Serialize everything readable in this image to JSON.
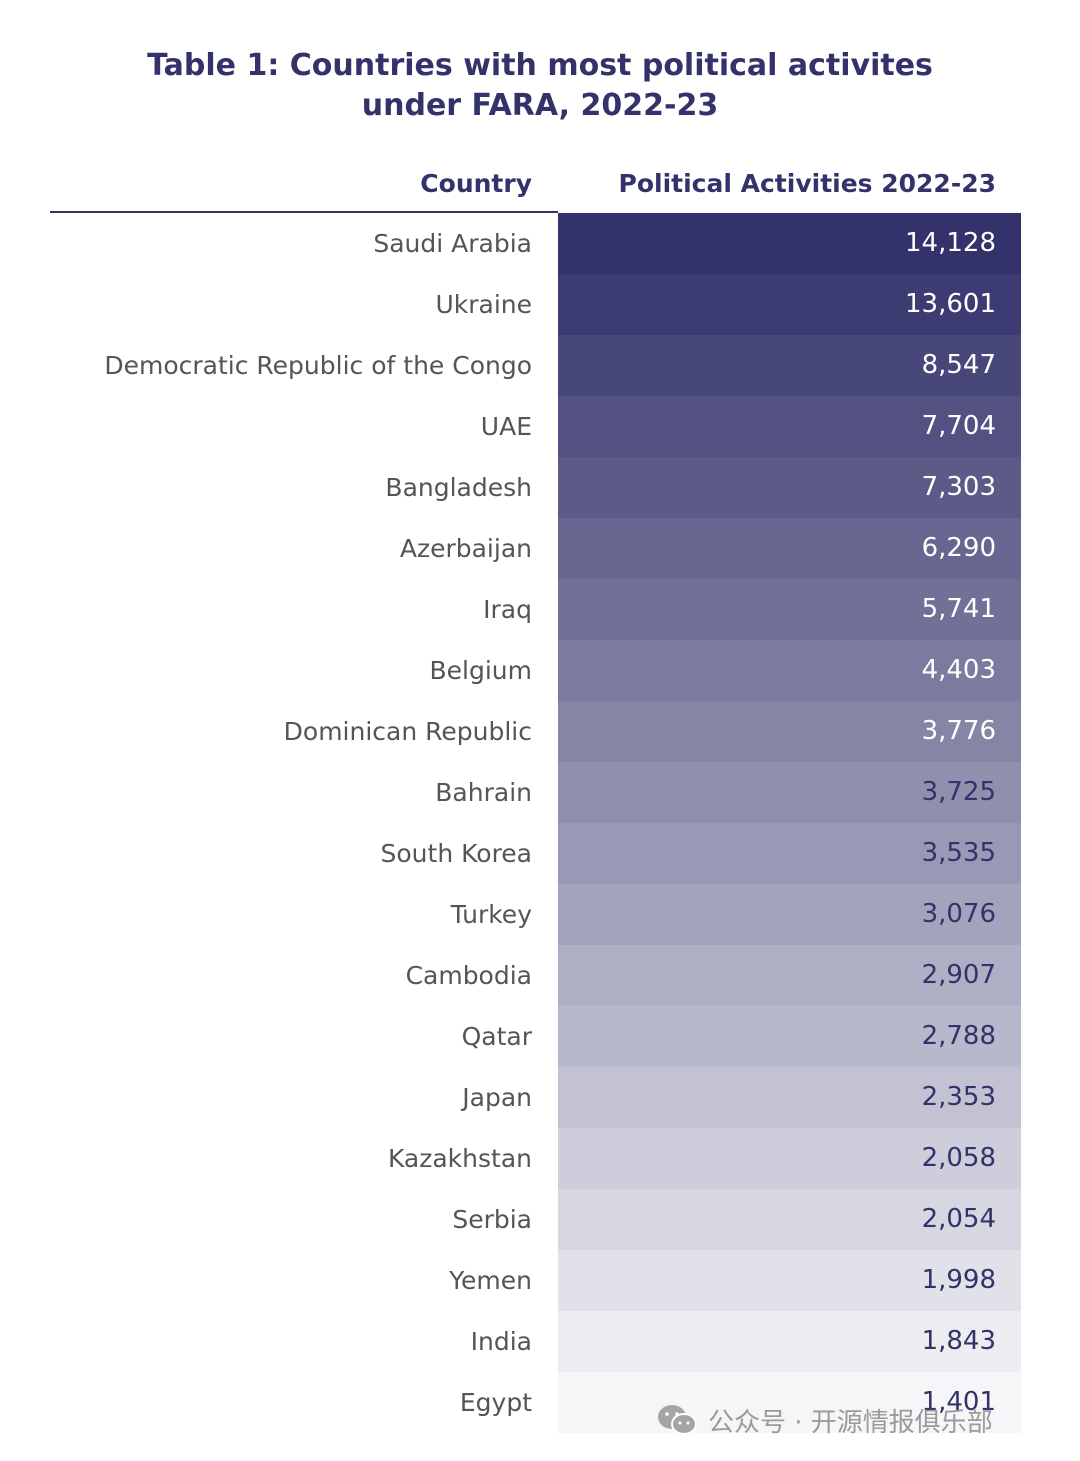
{
  "chart_data": {
    "type": "table",
    "title": "Table 1: Countries with most political activites under FARA, 2022-23",
    "title_lines": [
      "Table 1: Countries with most political activites",
      "under FARA, 2022-23"
    ],
    "columns": [
      "Country",
      "Political Activities 2022-23"
    ],
    "rows": [
      {
        "country": "Saudi Arabia",
        "value": "14,128"
      },
      {
        "country": "Ukraine",
        "value": "13,601"
      },
      {
        "country": "Democratic Republic of the Congo",
        "value": "8,547"
      },
      {
        "country": "UAE",
        "value": "7,704"
      },
      {
        "country": "Bangladesh",
        "value": "7,303"
      },
      {
        "country": "Azerbaijan",
        "value": "6,290"
      },
      {
        "country": "Iraq",
        "value": "5,741"
      },
      {
        "country": "Belgium",
        "value": "4,403"
      },
      {
        "country": "Dominican Republic",
        "value": "3,776"
      },
      {
        "country": "Bahrain",
        "value": "3,725"
      },
      {
        "country": "South Korea",
        "value": "3,535"
      },
      {
        "country": "Turkey",
        "value": "3,076"
      },
      {
        "country": "Cambodia",
        "value": "2,907"
      },
      {
        "country": "Qatar",
        "value": "2,788"
      },
      {
        "country": "Japan",
        "value": "2,353"
      },
      {
        "country": "Kazakhstan",
        "value": "2,058"
      },
      {
        "country": "Serbia",
        "value": "2,054"
      },
      {
        "country": "Yemen",
        "value": "1,998"
      },
      {
        "country": "India",
        "value": "1,843"
      },
      {
        "country": "Egypt",
        "value": "1,401"
      }
    ],
    "colors": {
      "title": "#33326a",
      "gradient_dark": "#33326a",
      "gradient_light": "#f6f6f9",
      "label_text": "#555555"
    }
  },
  "watermark": {
    "text": "公众号 · 开源情报俱乐部",
    "icon": "wechat-icon"
  }
}
